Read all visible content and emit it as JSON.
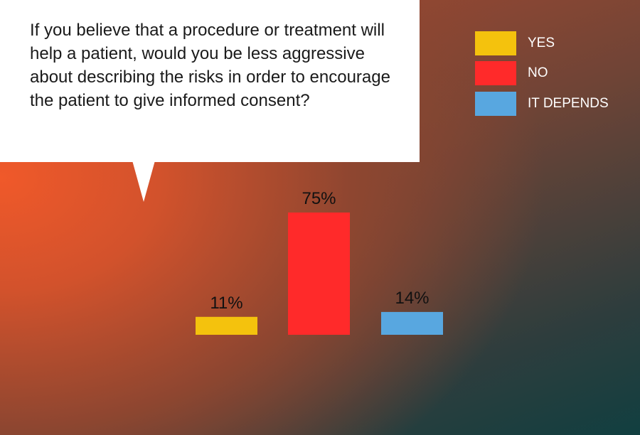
{
  "question": "If you believe that a procedure or treatment will help a patient, would you be less aggressive about describing the risks in order to encourage the patient to give informed consent?",
  "legend": [
    {
      "label": "YES",
      "color": "#f4c20d"
    },
    {
      "label": "NO",
      "color": "#ff2a2a"
    },
    {
      "label": "IT DEPENDS",
      "color": "#58a7e0"
    }
  ],
  "chart_data": {
    "type": "bar",
    "categories": [
      "YES",
      "NO",
      "IT DEPENDS"
    ],
    "values": [
      11,
      75,
      14
    ],
    "value_labels": [
      "11%",
      "75%",
      "14%"
    ],
    "colors": [
      "#f4c20d",
      "#ff2a2a",
      "#58a7e0"
    ],
    "ylim": [
      0,
      75
    ],
    "grid": false,
    "legend_position": "top-right"
  }
}
